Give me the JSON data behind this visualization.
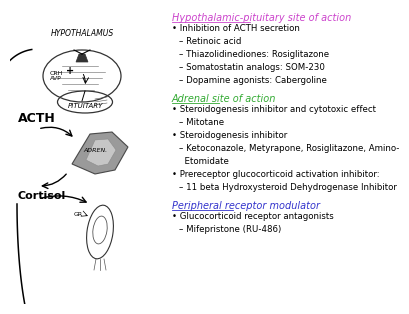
{
  "bg_color": "#ffffff",
  "title_hypo": "Hypothalamic-pituitary site of action",
  "title_adrenal": "Adrenal site of action",
  "title_peripheral": "Peripheral receptor modulator",
  "hypo_color": "#cc44cc",
  "adrenal_color": "#33aa33",
  "peripheral_color": "#3333cc",
  "text_color": "#000000",
  "lines_hypo": [
    {
      "bullet": true,
      "text": "Inhibition of ACTH secretion",
      "bold": true
    },
    {
      "bullet": false,
      "text": "– Retinoic acid",
      "bold": false
    },
    {
      "bullet": false,
      "text": "– Thiazolidinediones: Rosiglitazone",
      "bold": false
    },
    {
      "bullet": false,
      "text": "– Somatostatin analogs: SOM-230",
      "bold": false
    },
    {
      "bullet": false,
      "text": "– Dopamine agonists: Cabergoline",
      "bold": false
    }
  ],
  "lines_adrenal": [
    {
      "bullet": true,
      "text": "Steroidogenesis inhibitor and cytotoxic effect",
      "bold": false
    },
    {
      "bullet": false,
      "text": "– Mitotane",
      "bold": false
    },
    {
      "bullet": true,
      "text": "Steroidogenesis inhibitor",
      "bold": false
    },
    {
      "bullet": false,
      "text": "– Ketoconazole, Metyrapone, Rosiglitazone, Amino-",
      "bold": false
    },
    {
      "bullet": false,
      "text": "  Etomidate",
      "bold": false
    },
    {
      "bullet": true,
      "text": "Prereceptor glucocorticoid activation inhibitor:",
      "bold": false
    },
    {
      "bullet": false,
      "text": "– 11 beta Hydroxysteroid Dehydrogenase Inhibitor",
      "bold": false
    }
  ],
  "lines_peripheral": [
    {
      "bullet": true,
      "text": "Glucocorticoid receptor antagonists",
      "bold": false
    },
    {
      "bullet": false,
      "text": "– Mifepristone (RU-486)",
      "bold": false
    }
  ],
  "diagram": {
    "hypothalamus_label": "HYPOTHALAMUS",
    "pituitary_label": "PITUITARY",
    "crh_avp_label": "CRH\nAVP",
    "plus_label": "+",
    "acth_label": "ACTH",
    "adrenal_label": "ADREN.",
    "cortisol_label": "Cortisol",
    "gr_label": "GR"
  }
}
